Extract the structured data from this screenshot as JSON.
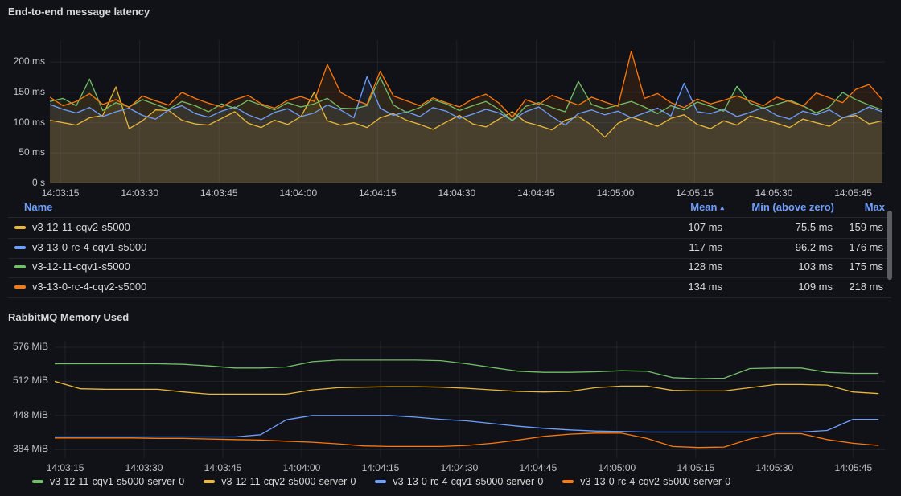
{
  "icons": {
    "sort_ascending": "▴"
  },
  "latency_panel": {
    "title": "End-to-end message latency",
    "table": {
      "columns": [
        "Name",
        "Mean",
        "Min (above zero)",
        "Max"
      ],
      "sorted_by": "Mean",
      "sort_direction": "ascending",
      "rows": [
        {
          "name": "v3-12-11-cqv2-s5000",
          "color": "#EAB839",
          "mean": "107 ms",
          "min": "75.5 ms",
          "max": "159 ms"
        },
        {
          "name": "v3-13-0-rc-4-cqv1-s5000",
          "color": "#6E9FFF",
          "mean": "117 ms",
          "min": "96.2 ms",
          "max": "176 ms"
        },
        {
          "name": "v3-12-11-cqv1-s5000",
          "color": "#73BF69",
          "mean": "128 ms",
          "min": "103 ms",
          "max": "175 ms"
        },
        {
          "name": "v3-13-0-rc-4-cqv2-s5000",
          "color": "#FF780A",
          "mean": "134 ms",
          "min": "109 ms",
          "max": "218 ms"
        }
      ]
    }
  },
  "memory_panel": {
    "title": "RabbitMQ Memory Used",
    "legend": [
      {
        "label": "v3-12-11-cqv1-s5000-server-0",
        "color": "#73BF69"
      },
      {
        "label": "v3-12-11-cqv2-s5000-server-0",
        "color": "#EAB839"
      },
      {
        "label": "v3-13-0-rc-4-cqv1-s5000-server-0",
        "color": "#6E9FFF"
      },
      {
        "label": "v3-13-0-rc-4-cqv2-s5000-server-0",
        "color": "#FF780A"
      }
    ]
  },
  "chart_data": [
    {
      "type": "area",
      "title": "End-to-end message latency",
      "unit": "ms",
      "legend_position": "bottom-table",
      "grid": true,
      "x_ticks": [
        "14:03:15",
        "14:03:30",
        "14:03:45",
        "14:04:00",
        "14:04:15",
        "14:04:30",
        "14:04:45",
        "14:05:00",
        "14:05:15",
        "14:05:30",
        "14:05:45"
      ],
      "x_window_s": 158,
      "x_first_tick_offset_s": 2,
      "x_tick_interval_s": 15,
      "x_start_s": 0,
      "x_step_s": 2.5,
      "ylim": [
        0,
        236
      ],
      "y_gridlines": [
        {
          "value": 0,
          "label": "0 s"
        },
        {
          "value": 50,
          "label": "50 ms"
        },
        {
          "value": 100,
          "label": "100 ms"
        },
        {
          "value": 150,
          "label": "150 ms"
        },
        {
          "value": 200,
          "label": "200 ms"
        }
      ],
      "series": [
        {
          "name": "v3-12-11-cqv2-s5000",
          "color": "#EAB839",
          "fill_opacity": 0.11,
          "stats": {
            "mean": 107,
            "min": 75.5,
            "max": 159
          },
          "values": [
            104,
            100,
            96,
            108,
            112,
            159,
            90,
            103,
            121,
            120,
            104,
            98,
            96,
            107,
            118,
            99,
            92,
            104,
            97,
            110,
            150,
            103,
            96,
            100,
            92,
            108,
            115,
            104,
            97,
            89,
            101,
            112,
            98,
            93,
            106,
            118,
            101,
            95,
            88,
            104,
            110,
            96,
            76,
            99,
            109,
            102,
            94,
            107,
            113,
            97,
            90,
            103,
            96,
            111,
            105,
            99,
            92,
            106,
            100,
            94,
            108,
            112,
            98,
            103
          ]
        },
        {
          "name": "v3-13-0-rc-4-cqv1-s5000",
          "color": "#6E9FFF",
          "fill_opacity": 0.09,
          "stats": {
            "mean": 117,
            "min": 96.2,
            "max": 176
          },
          "values": [
            130,
            122,
            116,
            125,
            110,
            118,
            124,
            112,
            106,
            121,
            128,
            115,
            109,
            119,
            126,
            113,
            105,
            117,
            123,
            110,
            116,
            129,
            121,
            108,
            176,
            124,
            112,
            118,
            110,
            125,
            119,
            107,
            114,
            122,
            116,
            104,
            118,
            126,
            110,
            96,
            115,
            121,
            113,
            119,
            108,
            116,
            124,
            111,
            165,
            118,
            115,
            122,
            110,
            117,
            125,
            112,
            106,
            119,
            113,
            121,
            108,
            115,
            126,
            118
          ]
        },
        {
          "name": "v3-12-11-cqv1-s5000",
          "color": "#73BF69",
          "fill_opacity": 0.09,
          "stats": {
            "mean": 128,
            "min": 103,
            "max": 175
          },
          "values": [
            135,
            140,
            128,
            172,
            120,
            133,
            126,
            138,
            130,
            122,
            135,
            128,
            118,
            131,
            124,
            137,
            129,
            121,
            133,
            126,
            131,
            140,
            124,
            123,
            128,
            175,
            129,
            117,
            125,
            138,
            131,
            120,
            128,
            135,
            122,
            103,
            127,
            133,
            125,
            118,
            168,
            130,
            123,
            129,
            135,
            126,
            115,
            128,
            121,
            134,
            127,
            119,
            160,
            132,
            124,
            130,
            137,
            128,
            116,
            126,
            150,
            138,
            129,
            121
          ]
        },
        {
          "name": "v3-13-0-rc-4-cqv2-s5000",
          "color": "#FF780A",
          "fill_opacity": 0.1,
          "stats": {
            "mean": 134,
            "min": 109,
            "max": 218
          },
          "values": [
            142,
            128,
            135,
            148,
            130,
            138,
            125,
            144,
            136,
            129,
            150,
            140,
            132,
            126,
            138,
            145,
            131,
            124,
            137,
            143,
            135,
            196,
            150,
            138,
            130,
            185,
            144,
            136,
            128,
            141,
            133,
            126,
            139,
            147,
            132,
            109,
            138,
            130,
            145,
            137,
            129,
            142,
            134,
            127,
            218,
            140,
            148,
            133,
            125,
            139,
            131,
            137,
            144,
            136,
            128,
            142,
            135,
            127,
            149,
            141,
            133,
            155,
            163,
            138
          ]
        }
      ]
    },
    {
      "type": "line",
      "title": "RabbitMQ Memory Used",
      "unit": "MiB",
      "legend_position": "bottom",
      "grid": true,
      "x_ticks": [
        "14:03:15",
        "14:03:30",
        "14:03:45",
        "14:04:00",
        "14:04:15",
        "14:04:30",
        "14:04:45",
        "14:05:00",
        "14:05:15",
        "14:05:30",
        "14:05:45"
      ],
      "x_window_s": 158,
      "x_first_tick_offset_s": 2,
      "x_tick_interval_s": 15,
      "x_start_s": 0,
      "x_step_s": 4.9,
      "ylim": [
        368,
        588
      ],
      "y_gridlines": [
        {
          "value": 384,
          "label": "384 MiB"
        },
        {
          "value": 448,
          "label": "448 MiB"
        },
        {
          "value": 512,
          "label": "512 MiB"
        },
        {
          "value": 576,
          "label": "576 MiB"
        }
      ],
      "series": [
        {
          "name": "v3-12-11-cqv1-s5000-server-0",
          "color": "#73BF69",
          "fill_opacity": 0,
          "values": [
            545,
            545,
            545,
            545,
            545,
            544,
            541,
            537,
            537,
            539,
            549,
            552,
            552,
            552,
            552,
            551,
            545,
            538,
            531,
            529,
            529,
            530,
            532,
            531,
            519,
            517,
            518,
            536,
            537,
            537,
            529,
            527,
            527
          ]
        },
        {
          "name": "v3-12-11-cqv2-s5000-server-0",
          "color": "#EAB839",
          "fill_opacity": 0,
          "values": [
            512,
            498,
            497,
            497,
            497,
            492,
            488,
            488,
            488,
            488,
            496,
            500,
            501,
            502,
            502,
            501,
            499,
            496,
            493,
            492,
            493,
            500,
            503,
            503,
            495,
            494,
            494,
            500,
            506,
            506,
            505,
            492,
            489
          ]
        },
        {
          "name": "v3-13-0-rc-4-cqv1-s5000-server-0",
          "color": "#6E9FFF",
          "fill_opacity": 0,
          "values": [
            408,
            408,
            408,
            408,
            408,
            408,
            408,
            408,
            412,
            440,
            448,
            448,
            448,
            448,
            445,
            441,
            438,
            433,
            428,
            424,
            421,
            419,
            418,
            417,
            417,
            417,
            417,
            417,
            417,
            417,
            420,
            441,
            441
          ]
        },
        {
          "name": "v3-13-0-rc-4-cqv2-s5000-server-0",
          "color": "#FF780A",
          "fill_opacity": 0,
          "values": [
            406,
            406,
            406,
            406,
            405,
            405,
            404,
            403,
            402,
            400,
            398,
            395,
            391,
            390,
            390,
            390,
            392,
            396,
            402,
            409,
            413,
            415,
            415,
            405,
            390,
            388,
            389,
            404,
            414,
            414,
            403,
            396,
            392
          ]
        }
      ]
    }
  ]
}
